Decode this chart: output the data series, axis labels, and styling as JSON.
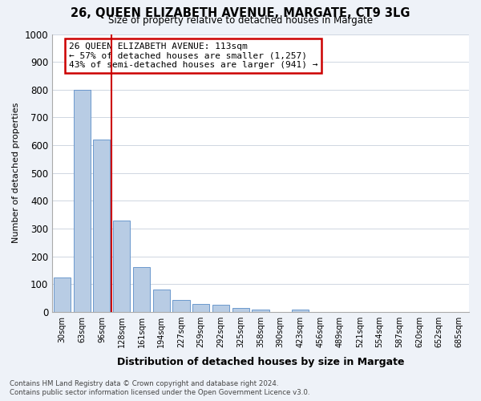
{
  "title": "26, QUEEN ELIZABETH AVENUE, MARGATE, CT9 3LG",
  "subtitle": "Size of property relative to detached houses in Margate",
  "xlabel": "Distribution of detached houses by size in Margate",
  "ylabel": "Number of detached properties",
  "categories": [
    "30sqm",
    "63sqm",
    "96sqm",
    "128sqm",
    "161sqm",
    "194sqm",
    "227sqm",
    "259sqm",
    "292sqm",
    "325sqm",
    "358sqm",
    "390sqm",
    "423sqm",
    "456sqm",
    "489sqm",
    "521sqm",
    "554sqm",
    "587sqm",
    "620sqm",
    "652sqm",
    "685sqm"
  ],
  "values": [
    125,
    800,
    620,
    330,
    163,
    82,
    42,
    30,
    25,
    15,
    10,
    0,
    8,
    0,
    0,
    0,
    0,
    0,
    0,
    0,
    0
  ],
  "bar_color": "#b8cce4",
  "bar_edge_color": "#5b8dc8",
  "vline_x": 2.5,
  "vline_color": "#cc0000",
  "annotation_title": "26 QUEEN ELIZABETH AVENUE: 113sqm",
  "annotation_line1": "← 57% of detached houses are smaller (1,257)",
  "annotation_line2": "43% of semi-detached houses are larger (941) →",
  "annotation_box_color": "#cc0000",
  "ylim": [
    0,
    1000
  ],
  "yticks": [
    0,
    100,
    200,
    300,
    400,
    500,
    600,
    700,
    800,
    900,
    1000
  ],
  "footer_line1": "Contains HM Land Registry data © Crown copyright and database right 2024.",
  "footer_line2": "Contains public sector information licensed under the Open Government Licence v3.0.",
  "bg_color": "#eef2f8",
  "plot_bg_color": "#ffffff"
}
